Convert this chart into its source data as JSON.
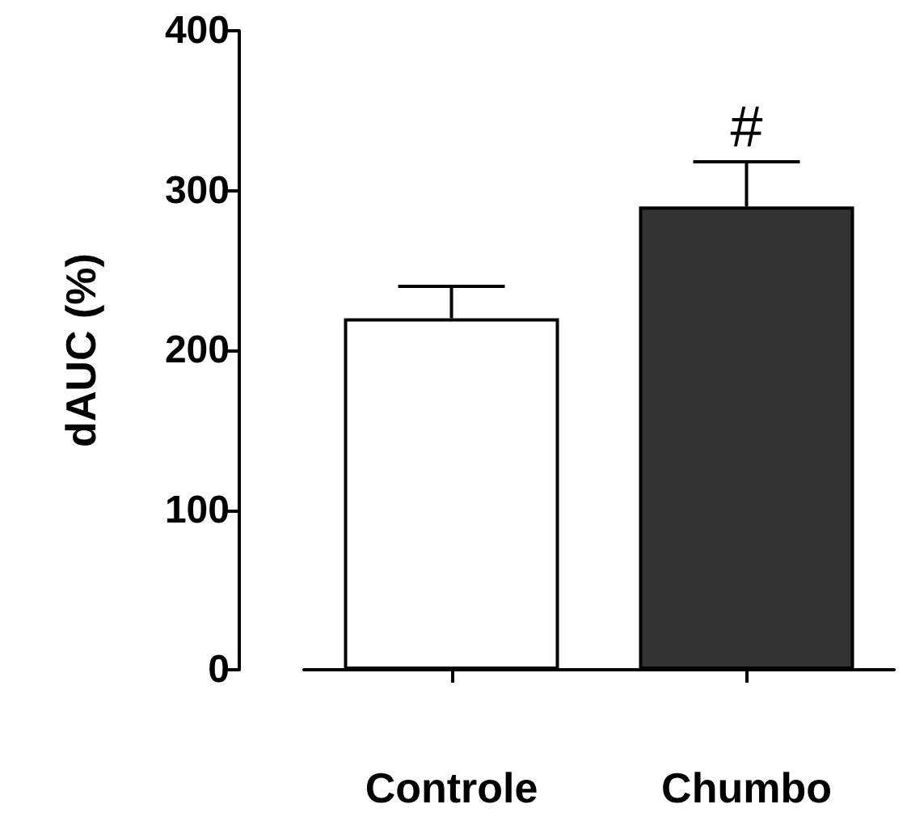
{
  "chart_data": {
    "type": "bar",
    "ylabel": "dAUC (%)",
    "categories": [
      "Controle",
      "Chumbo"
    ],
    "values": [
      220,
      290
    ],
    "colors": [
      "#ffffff",
      "#333333"
    ],
    "errors": [
      [
        220,
        240
      ],
      [
        290,
        318
      ]
    ],
    "ylim": [
      0,
      400
    ],
    "yticks": [
      0,
      100,
      200,
      300,
      400
    ],
    "grid": false,
    "annotations": [
      {
        "text": "#",
        "x": "Chumbo",
        "y": 318
      }
    ]
  }
}
